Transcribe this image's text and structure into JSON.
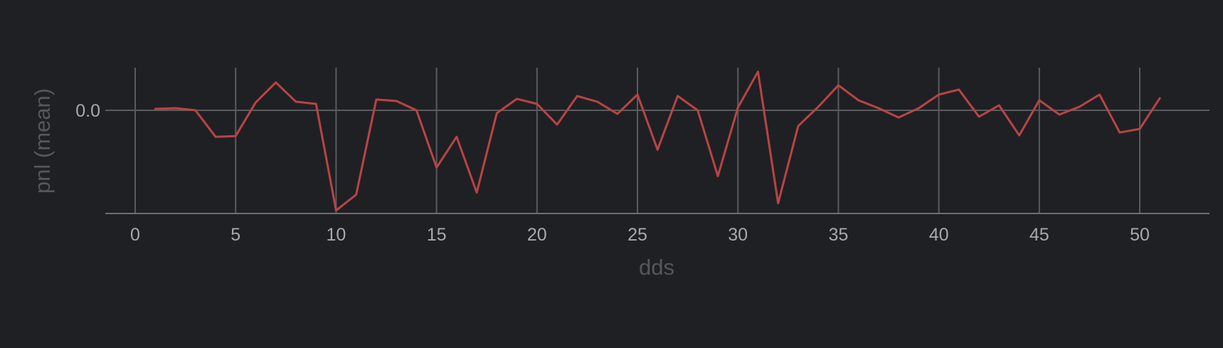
{
  "chart_data": {
    "type": "line",
    "xlabel": "dds",
    "ylabel": "pnl (mean)",
    "x_ticks": [
      0,
      5,
      10,
      15,
      20,
      25,
      30,
      35,
      40,
      45,
      50
    ],
    "y_ticks": [
      0.0
    ],
    "y_tick_labels": [
      "0.0"
    ],
    "xlim": [
      -1.5,
      53.5
    ],
    "ylim": [
      -1.5,
      0.6
    ],
    "grid": true,
    "colors": {
      "background": "#1f2024",
      "grid": "#5a5b5f",
      "line": "#b84444"
    },
    "series": [
      {
        "x": [
          1,
          2,
          3,
          4,
          5,
          6,
          7,
          8,
          9,
          10,
          11,
          12,
          13,
          14,
          15,
          16,
          17,
          18,
          19,
          20,
          21,
          22,
          23,
          24,
          25,
          26,
          27,
          28,
          29,
          30,
          31,
          32,
          33,
          34,
          35,
          36,
          37,
          38,
          39,
          40,
          41,
          42,
          43,
          44,
          45,
          46,
          47,
          48,
          49,
          50,
          51
        ],
        "values": [
          0.02,
          0.03,
          0.0,
          -0.37,
          -0.36,
          0.11,
          0.39,
          0.12,
          0.09,
          -1.4,
          -1.18,
          0.15,
          0.13,
          0.0,
          -0.8,
          -0.37,
          -1.15,
          -0.04,
          0.16,
          0.09,
          -0.2,
          0.2,
          0.12,
          -0.05,
          0.22,
          -0.55,
          0.2,
          0.0,
          -0.92,
          0.04,
          0.54,
          -1.3,
          -0.22,
          0.05,
          0.35,
          0.14,
          0.03,
          -0.1,
          0.03,
          0.22,
          0.29,
          -0.09,
          0.07,
          -0.35,
          0.14,
          -0.06,
          0.05,
          0.22,
          -0.31,
          -0.26,
          0.17
        ]
      }
    ]
  }
}
